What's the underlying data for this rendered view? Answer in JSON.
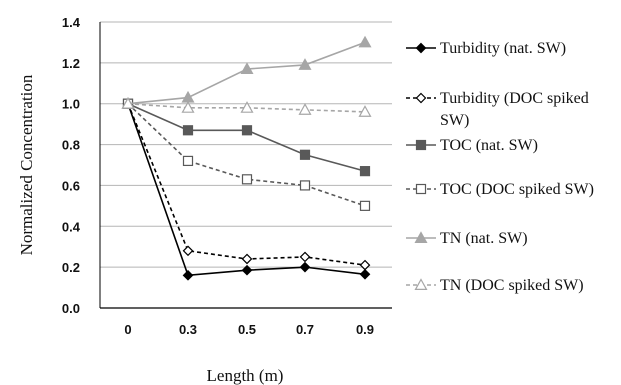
{
  "chart_data": {
    "type": "line",
    "x": [
      0,
      0.3,
      0.5,
      0.7,
      0.9
    ],
    "xticks": [
      "0",
      "0.3",
      "0.5",
      "0.7",
      "0.9"
    ],
    "xlabel": "Length (m)",
    "ylabel": "Normalized Concentration",
    "ylim": [
      0,
      1.4
    ],
    "yticks": [
      "0.0",
      "0.2",
      "0.4",
      "0.6",
      "0.8",
      "1.0",
      "1.2",
      "1.4"
    ],
    "grid": "horizontal",
    "legend_position": "right",
    "series": [
      {
        "name": "Turbidity (nat. SW)",
        "values": [
          1.0,
          0.16,
          0.185,
          0.2,
          0.165
        ],
        "color": "#000000",
        "dash": "solid",
        "marker": "diamond",
        "filled": true
      },
      {
        "name": "Turbidity (DOC spiked SW)",
        "values": [
          1.0,
          0.28,
          0.24,
          0.25,
          0.21
        ],
        "color": "#000000",
        "dash": "dashed",
        "marker": "diamond",
        "filled": false
      },
      {
        "name": "TOC (nat. SW)",
        "values": [
          1.0,
          0.87,
          0.87,
          0.75,
          0.67
        ],
        "color": "#595959",
        "dash": "solid",
        "marker": "square",
        "filled": true
      },
      {
        "name": "TOC (DOC spiked SW)",
        "values": [
          1.0,
          0.72,
          0.63,
          0.6,
          0.5
        ],
        "color": "#595959",
        "dash": "dashed",
        "marker": "square",
        "filled": false
      },
      {
        "name": "TN (nat. SW)",
        "values": [
          1.0,
          1.03,
          1.17,
          1.19,
          1.3
        ],
        "color": "#a6a6a6",
        "dash": "solid",
        "marker": "triangle",
        "filled": true
      },
      {
        "name": "TN (DOC spiked SW)",
        "values": [
          1.0,
          0.98,
          0.98,
          0.97,
          0.96
        ],
        "color": "#a6a6a6",
        "dash": "dashed",
        "marker": "triangle",
        "filled": false
      }
    ]
  }
}
